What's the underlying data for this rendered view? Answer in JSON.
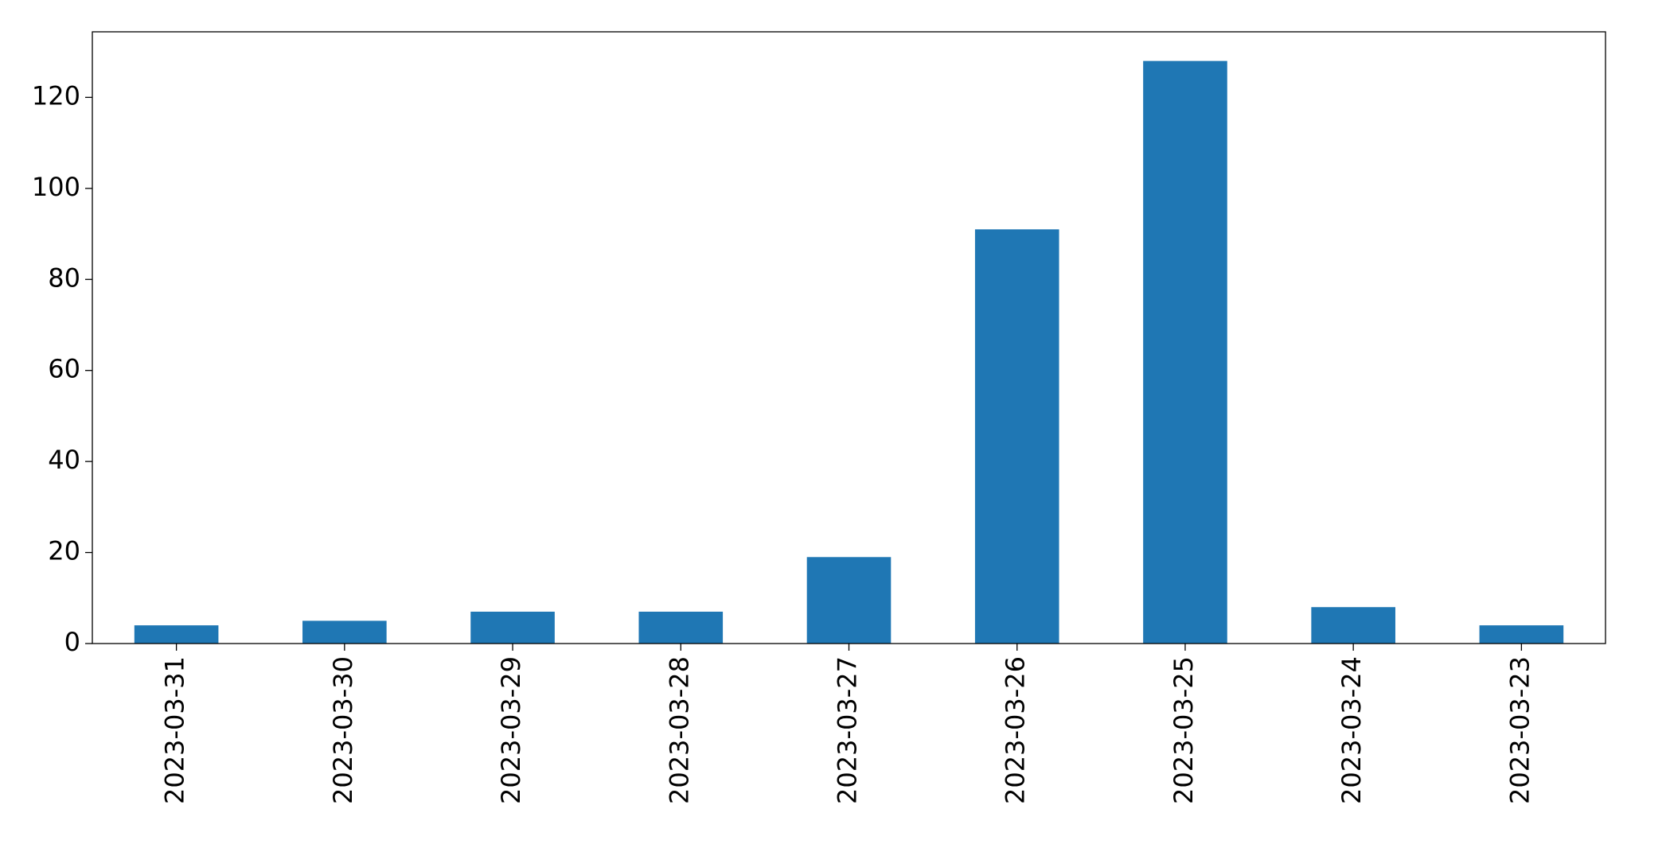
{
  "chart_data": {
    "type": "bar",
    "categories": [
      "2023-03-31",
      "2023-03-30",
      "2023-03-29",
      "2023-03-28",
      "2023-03-27",
      "2023-03-26",
      "2023-03-25",
      "2023-03-24",
      "2023-03-23"
    ],
    "values": [
      4,
      5,
      7,
      7,
      19,
      91,
      128,
      8,
      4
    ],
    "color": "#1f77b4",
    "ylim": [
      0,
      134.4
    ],
    "yticks": [
      0,
      20,
      40,
      60,
      80,
      100,
      120
    ],
    "grid": false
  }
}
